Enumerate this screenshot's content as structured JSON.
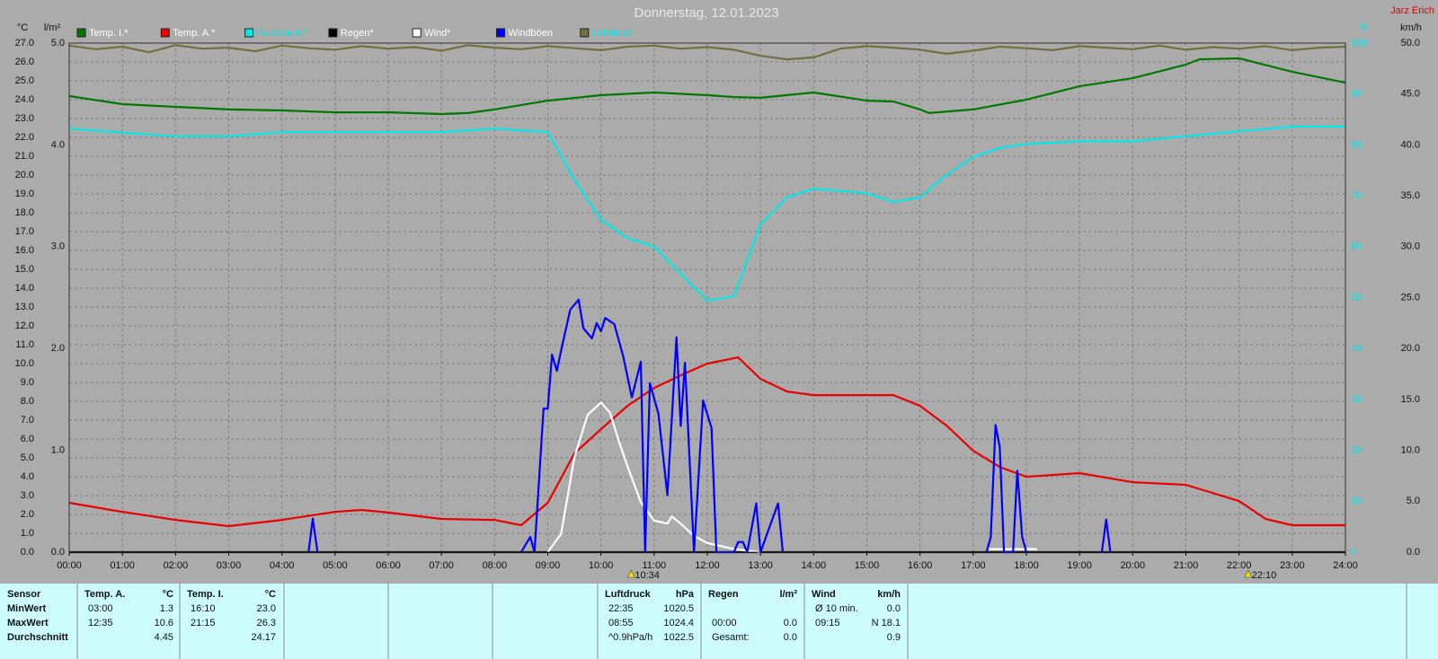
{
  "header": {
    "author": "Jarz Erich"
  },
  "chart_data": {
    "type": "line",
    "title": "Donnerstag, 12.01.2023",
    "grid": true,
    "xlim": [
      0,
      24
    ],
    "xticks": [
      {
        "value": 0,
        "label": "00:00"
      },
      {
        "value": 1,
        "label": "01:00"
      },
      {
        "value": 2,
        "label": "02:00"
      },
      {
        "value": 3,
        "label": "03:00"
      },
      {
        "value": 4,
        "label": "04:00"
      },
      {
        "value": 5,
        "label": "05:00"
      },
      {
        "value": 6,
        "label": "06:00"
      },
      {
        "value": 7,
        "label": "07:00"
      },
      {
        "value": 8,
        "label": "08:00"
      },
      {
        "value": 9,
        "label": "09:00"
      },
      {
        "value": 10,
        "label": "10:00"
      },
      {
        "value": 11,
        "label": "11:00"
      },
      {
        "value": 12,
        "label": "12:00"
      },
      {
        "value": 13,
        "label": "13:00"
      },
      {
        "value": 14,
        "label": "14:00"
      },
      {
        "value": 15,
        "label": "15:00"
      },
      {
        "value": 16,
        "label": "16:00"
      },
      {
        "value": 17,
        "label": "17:00"
      },
      {
        "value": 18,
        "label": "18:00"
      },
      {
        "value": 19,
        "label": "19:00"
      },
      {
        "value": 20,
        "label": "20:00"
      },
      {
        "value": 21,
        "label": "21:00"
      },
      {
        "value": 22,
        "label": "22:00"
      },
      {
        "value": 23,
        "label": "23:00"
      },
      {
        "value": 24,
        "label": "24:00"
      }
    ],
    "axes": [
      {
        "title": "°C",
        "lim": [
          0,
          27
        ],
        "ticks": [
          {
            "value": 0,
            "label": "0.0"
          },
          {
            "value": 1,
            "label": "1.0"
          },
          {
            "value": 2,
            "label": "2.0"
          },
          {
            "value": 3,
            "label": "3.0"
          },
          {
            "value": 4,
            "label": "4.0"
          },
          {
            "value": 5,
            "label": "5.0"
          },
          {
            "value": 6,
            "label": "6.0"
          },
          {
            "value": 7,
            "label": "7.0"
          },
          {
            "value": 8,
            "label": "8.0"
          },
          {
            "value": 9,
            "label": "9.0"
          },
          {
            "value": 10,
            "label": "10.0"
          },
          {
            "value": 11,
            "label": "11.0"
          },
          {
            "value": 12,
            "label": "12.0"
          },
          {
            "value": 13,
            "label": "13.0"
          },
          {
            "value": 14,
            "label": "14.0"
          },
          {
            "value": 15,
            "label": "15.0"
          },
          {
            "value": 16,
            "label": "16.0"
          },
          {
            "value": 17,
            "label": "17.0"
          },
          {
            "value": 18,
            "label": "18.0"
          },
          {
            "value": 19,
            "label": "19.0"
          },
          {
            "value": 20,
            "label": "20.0"
          },
          {
            "value": 21,
            "label": "21.0"
          },
          {
            "value": 22,
            "label": "22.0"
          },
          {
            "value": 23,
            "label": "23.0"
          },
          {
            "value": 24,
            "label": "24.0"
          },
          {
            "value": 25,
            "label": "25.0"
          },
          {
            "value": 26,
            "label": "26.0"
          },
          {
            "value": 27,
            "label": "27.0"
          }
        ]
      },
      {
        "title": "l/m²",
        "lim": [
          0,
          5
        ],
        "ticks": [
          {
            "value": 0,
            "label": "0.0"
          },
          {
            "value": 1,
            "label": "1.0"
          },
          {
            "value": 2,
            "label": "2.0"
          },
          {
            "value": 3,
            "label": "3.0"
          },
          {
            "value": 4,
            "label": "4.0"
          },
          {
            "value": 5,
            "label": "5.0"
          }
        ]
      },
      {
        "title": "%",
        "lim": [
          0,
          100
        ],
        "color": "#00e8e8",
        "ticks": [
          0,
          10,
          20,
          30,
          40,
          50,
          60,
          70,
          80,
          90,
          100
        ]
      },
      {
        "title": "km/h",
        "lim": [
          0,
          50
        ],
        "ticks": [
          {
            "value": 0,
            "label": "0.0"
          },
          {
            "value": 5,
            "label": "5.0"
          },
          {
            "value": 10,
            "label": "10.0"
          },
          {
            "value": 15,
            "label": "15.0"
          },
          {
            "value": 20,
            "label": "20.0"
          },
          {
            "value": 25,
            "label": "25.0"
          },
          {
            "value": 30,
            "label": "30.0"
          },
          {
            "value": 35,
            "label": "35.0"
          },
          {
            "value": 40,
            "label": "40.0"
          },
          {
            "value": 45,
            "label": "45.0"
          },
          {
            "value": 50,
            "label": "50.0"
          }
        ]
      }
    ],
    "series": [
      {
        "name": "Temp. I.*",
        "color": "#007800",
        "axis": 0,
        "x": [
          0,
          1,
          2,
          3,
          4,
          5,
          6,
          7,
          7.5,
          8,
          9,
          10,
          11,
          12,
          12.5,
          13,
          14,
          15,
          15.5,
          16,
          16.17,
          17,
          18,
          19,
          20,
          21,
          21.25,
          22,
          23,
          24
        ],
        "values": [
          24.19,
          23.76,
          23.62,
          23.48,
          23.43,
          23.33,
          23.33,
          23.24,
          23.29,
          23.48,
          23.95,
          24.24,
          24.38,
          24.24,
          24.14,
          24.1,
          24.38,
          23.95,
          23.9,
          23.48,
          23.29,
          23.48,
          24.0,
          24.71,
          25.14,
          25.86,
          26.14,
          26.19,
          25.48,
          24.9
        ]
      },
      {
        "name": "Temp. A.*",
        "color": "#e80000",
        "axis": 0,
        "x": [
          0,
          1,
          2,
          3,
          4,
          5,
          5.5,
          6,
          7,
          8,
          8.5,
          9,
          9.5,
          10,
          10.5,
          11,
          11.5,
          12,
          12.58,
          13,
          13.5,
          14,
          15,
          15.5,
          16,
          16.5,
          17,
          17.5,
          18,
          19,
          20,
          21,
          22,
          22.5,
          23,
          24
        ],
        "values": [
          2.62,
          2.14,
          1.71,
          1.38,
          1.71,
          2.14,
          2.24,
          2.1,
          1.76,
          1.71,
          1.43,
          2.62,
          5.24,
          6.52,
          7.76,
          8.71,
          9.38,
          10.0,
          10.33,
          9.19,
          8.52,
          8.33,
          8.33,
          8.33,
          7.76,
          6.71,
          5.38,
          4.52,
          4.0,
          4.19,
          3.71,
          3.57,
          2.71,
          1.76,
          1.43,
          1.43
        ]
      },
      {
        "name": "Feuchte A.*",
        "color": "#00e8e8",
        "label_color": "#00e8e8",
        "axis": 2,
        "x": [
          0,
          1,
          2,
          3,
          4,
          5,
          6,
          7,
          8,
          9,
          9.5,
          10,
          10.5,
          11,
          11.5,
          12,
          12.5,
          13,
          13.5,
          14,
          15,
          15.5,
          16,
          16.5,
          17,
          17.5,
          18,
          19,
          20,
          21,
          22,
          23,
          24
        ],
        "values": [
          83.2,
          82.4,
          81.7,
          81.7,
          82.5,
          82.5,
          82.5,
          82.5,
          83.2,
          82.5,
          73.2,
          65.3,
          61.7,
          60,
          54.7,
          49.4,
          50.3,
          64.4,
          69.7,
          71.4,
          70.5,
          68.8,
          69.7,
          74.1,
          77.6,
          79.4,
          80.2,
          80.7,
          80.7,
          81.7,
          82.7,
          83.6,
          83.6
        ]
      },
      {
        "name": "Regen*",
        "color": "#000000",
        "axis": 1,
        "x": [
          0,
          24
        ],
        "values": [
          0,
          0
        ]
      },
      {
        "name": "Wind*",
        "color": "#ffffff",
        "axis": 3,
        "x": [
          9,
          9.25,
          9.5,
          9.75,
          10,
          10.17,
          10.33,
          10.5,
          10.75,
          11,
          11.25,
          11.33,
          11.5,
          11.75,
          12,
          12.5,
          13,
          15,
          17.3,
          17.5,
          18,
          18.2
        ],
        "values": [
          0,
          1.8,
          9.3,
          13.5,
          14.7,
          13.7,
          11,
          8.4,
          4.9,
          3.1,
          2.8,
          3.5,
          2.8,
          1.6,
          0.9,
          0.3,
          0,
          null,
          0.3,
          0.3,
          0.3,
          0.3
        ]
      },
      {
        "name": "Windböen",
        "color": "#0000ff",
        "axis": 3,
        "x": [
          4.5,
          4.58,
          4.67,
          5,
          8.5,
          8.67,
          8.75,
          8.92,
          9,
          9.08,
          9.17,
          9.25,
          9.42,
          9.58,
          9.67,
          9.83,
          9.92,
          10,
          10.08,
          10.25,
          10.42,
          10.58,
          10.75,
          10.83,
          10.92,
          11.08,
          11.25,
          11.42,
          11.5,
          11.58,
          11.75,
          11.92,
          12.08,
          12.17,
          12.5,
          12.58,
          12.67,
          12.75,
          12.92,
          13,
          13.33,
          13.42,
          15,
          17.25,
          17.33,
          17.42,
          17.5,
          17.58,
          17.75,
          17.83,
          17.92,
          18,
          18.5,
          19.42,
          19.5,
          19.58
        ],
        "values": [
          0,
          3.3,
          0,
          null,
          0,
          1.5,
          0,
          14.1,
          14.1,
          19.4,
          17.8,
          19.8,
          23.8,
          24.8,
          22,
          21,
          22.5,
          21.7,
          23,
          22.4,
          19.2,
          15.2,
          18.7,
          0,
          16.6,
          13.6,
          5.6,
          21.1,
          12.4,
          18.6,
          0,
          14.9,
          12.2,
          0,
          0,
          1,
          1,
          0,
          4.8,
          0,
          4.8,
          0,
          null,
          0,
          1.5,
          12.5,
          10.3,
          0,
          0,
          8,
          1.5,
          0,
          null,
          0,
          3.2,
          0
        ]
      },
      {
        "name": "Luftdruck",
        "color": "#707040",
        "label_color": "#00e8e8",
        "axis": 2,
        "x": [
          0,
          0.5,
          1,
          1.5,
          2,
          2.5,
          3,
          3.5,
          4,
          4.5,
          5,
          5.5,
          6,
          6.5,
          7,
          7.5,
          8,
          8.5,
          9,
          9.5,
          10,
          10.5,
          11,
          11.5,
          12,
          12.5,
          13,
          13.5,
          14,
          14.5,
          15,
          15.5,
          16,
          16.5,
          17,
          17.5,
          18,
          18.5,
          19,
          19.5,
          20,
          20.5,
          21,
          21.5,
          22,
          22.5,
          23,
          23.5,
          24
        ],
        "values": [
          99.5,
          98.8,
          99.3,
          98.2,
          99.6,
          98.9,
          99.1,
          98.4,
          99.5,
          99.0,
          98.7,
          99.4,
          98.9,
          99.2,
          98.5,
          99.6,
          99.1,
          98.8,
          99.4,
          99.0,
          98.6,
          99.3,
          99.5,
          98.9,
          99.2,
          98.7,
          97.5,
          96.8,
          97.2,
          98.9,
          99.4,
          99.1,
          98.7,
          97.9,
          98.5,
          99.3,
          99.0,
          98.6,
          99.4,
          99.1,
          98.8,
          99.5,
          98.7,
          99.2,
          98.9,
          99.4,
          98.6,
          99.1,
          99.3
        ]
      }
    ],
    "markers": [
      {
        "x": 10.57,
        "label": "10:34"
      },
      {
        "x": 22.17,
        "label": "22:10"
      }
    ]
  },
  "stats": {
    "row_labels": [
      "Sensor",
      "MinWert",
      "MaxWert",
      "Durchschnitt"
    ],
    "groups": [
      {
        "name": "Temp. A.",
        "unit": "°C",
        "rows": [
          [
            "03:00",
            "1.3"
          ],
          [
            "12:35",
            "10.6"
          ],
          [
            null,
            "4.45"
          ]
        ]
      },
      {
        "name": "Temp. I.",
        "unit": "°C",
        "rows": [
          [
            "16:10",
            "23.0"
          ],
          [
            "21:15",
            "26.3"
          ],
          [
            null,
            "24.17"
          ]
        ]
      },
      {
        "name": "Luftdruck",
        "unit": "hPa",
        "rows": [
          [
            "22:35",
            "1020.5"
          ],
          [
            "08:55",
            "1024.4"
          ],
          [
            "^0.9hPa/h",
            "1022.5"
          ]
        ]
      },
      {
        "name": "Regen",
        "unit": "l/m²",
        "rows": [
          [
            null,
            null
          ],
          [
            "00:00",
            "0.0"
          ],
          [
            "Gesamt:",
            "0.0"
          ]
        ]
      },
      {
        "name": "Wind",
        "unit": "km/h",
        "rows": [
          [
            "Ø 10 min.",
            "0.0"
          ],
          [
            "09:15",
            "N 18.1"
          ],
          [
            null,
            "0.9"
          ]
        ]
      }
    ]
  }
}
